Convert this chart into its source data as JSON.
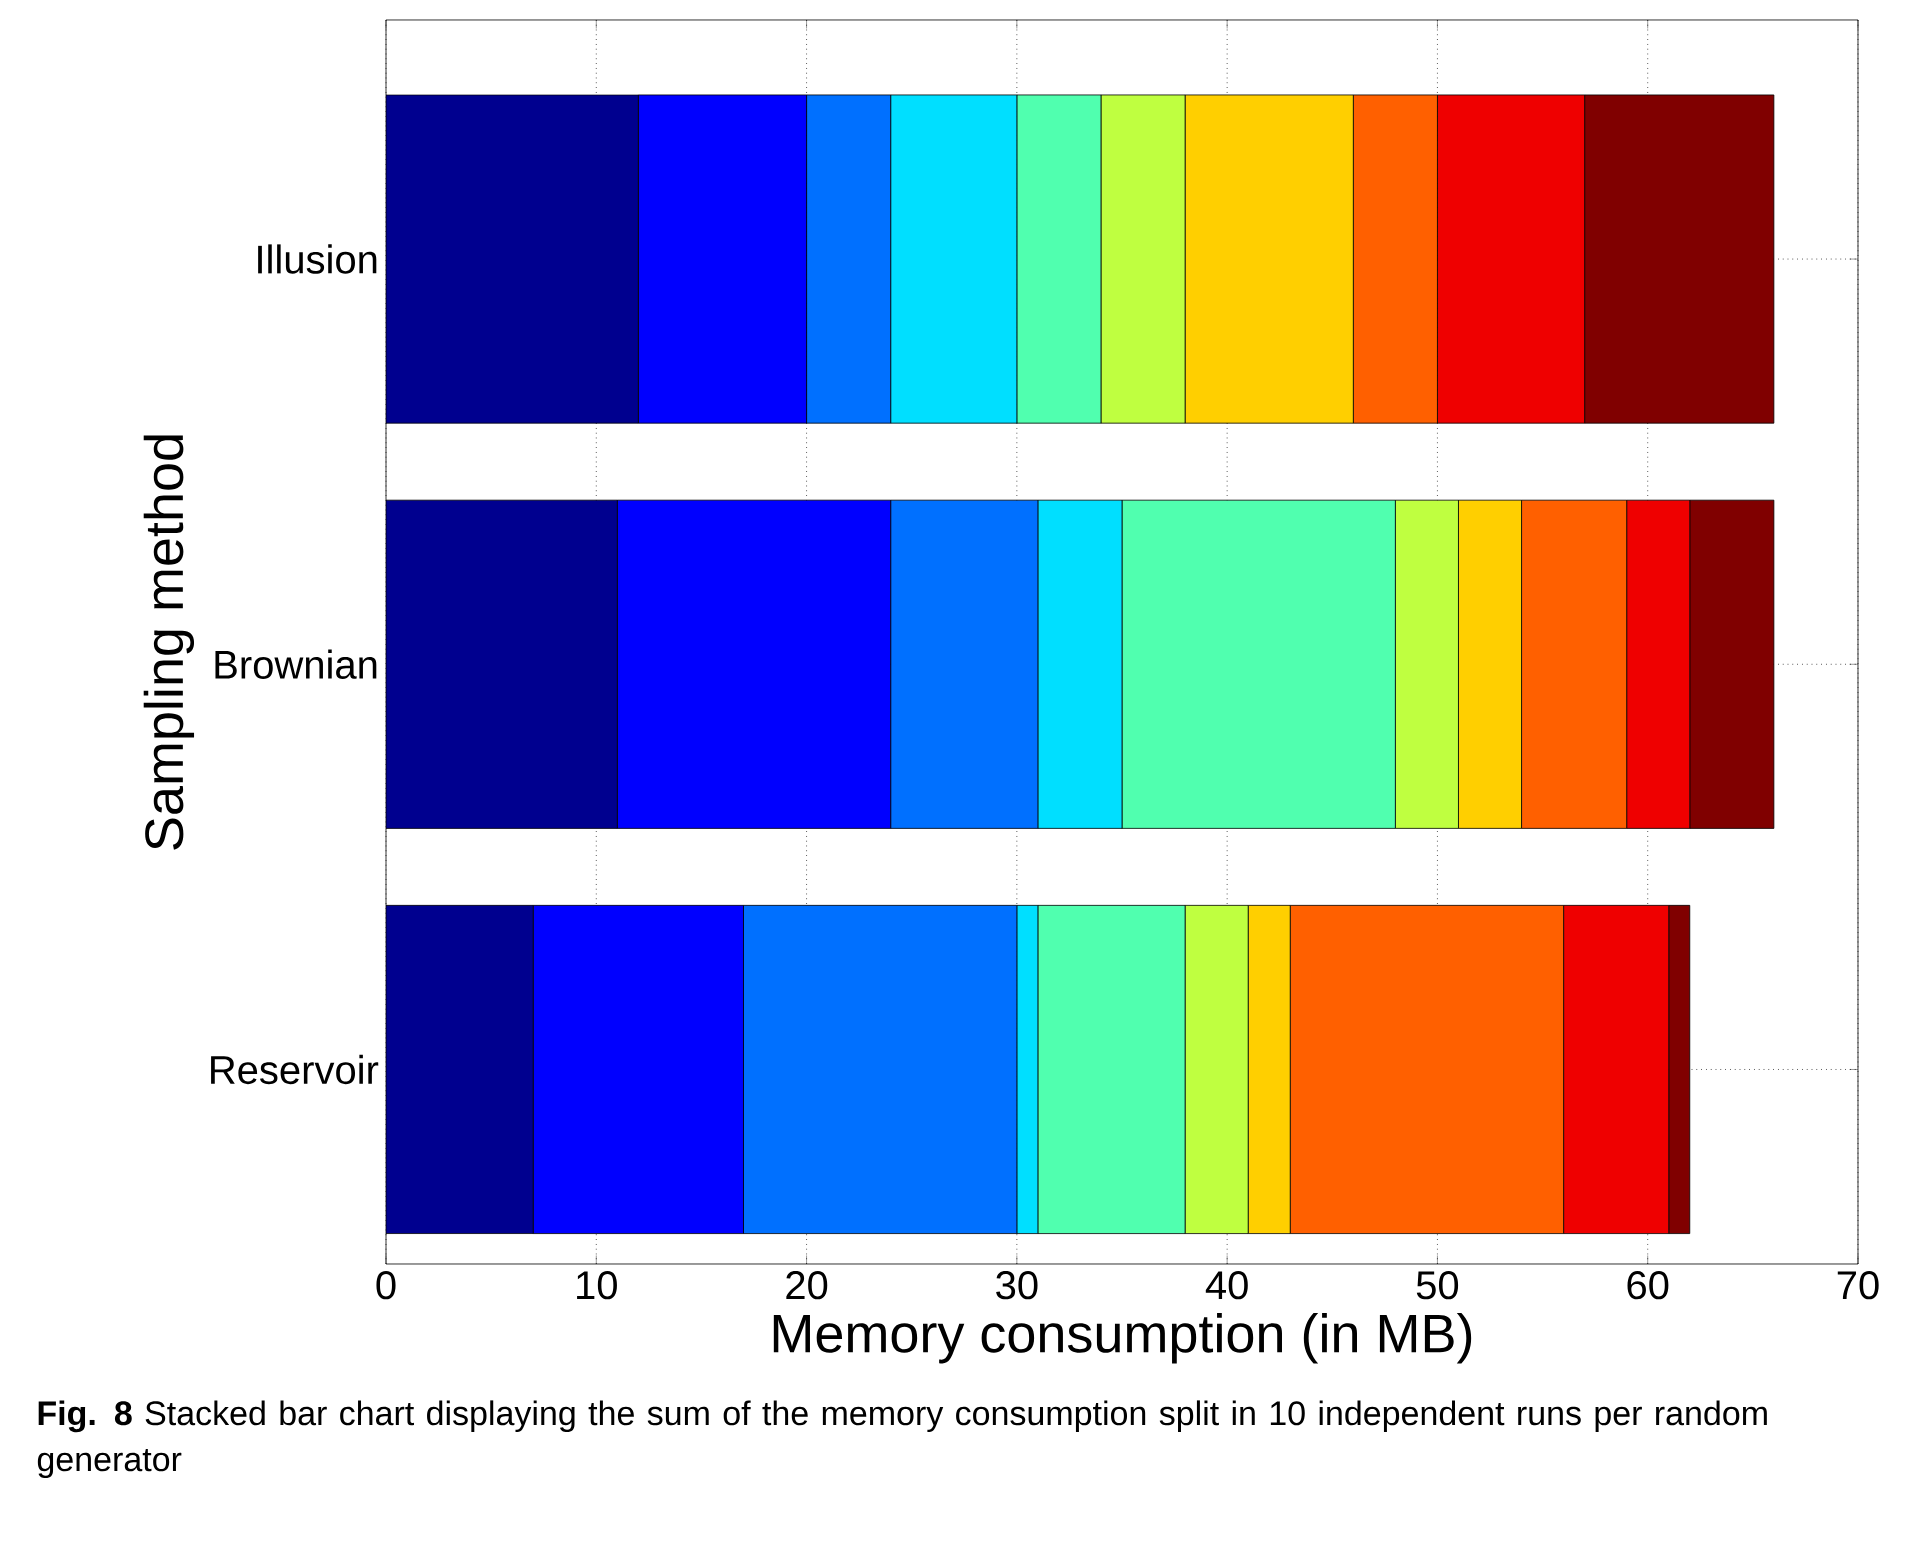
{
  "chart_data": {
    "type": "bar",
    "orientation": "horizontal",
    "stacked": true,
    "xlabel": "Memory consumption (in MB)",
    "ylabel": "Sampling method",
    "categories": [
      "Illusion",
      "Brownian",
      "Reservoir"
    ],
    "series": [
      {
        "color": "#00008f",
        "values": [
          12,
          11,
          7
        ]
      },
      {
        "color": "#0000ff",
        "values": [
          8,
          13,
          10
        ]
      },
      {
        "color": "#0070ff",
        "values": [
          4,
          7,
          13
        ]
      },
      {
        "color": "#00dfff",
        "values": [
          6,
          4,
          1
        ]
      },
      {
        "color": "#50ffaf",
        "values": [
          4,
          13,
          7
        ]
      },
      {
        "color": "#bfff40",
        "values": [
          4,
          3,
          3
        ]
      },
      {
        "color": "#ffcf00",
        "values": [
          8,
          3,
          2
        ]
      },
      {
        "color": "#ff6000",
        "values": [
          4,
          5,
          13
        ]
      },
      {
        "color": "#ef0000",
        "values": [
          7,
          3,
          5
        ]
      },
      {
        "color": "#800000",
        "values": [
          9,
          4,
          1
        ]
      }
    ],
    "xlim": [
      0,
      70
    ],
    "xticks": [
      0,
      10,
      20,
      30,
      40,
      50,
      60,
      70
    ],
    "grid": true,
    "annotations": [
      "**Fig. 8** Stacked bar chart displaying the sum of the memory consumption split in 10 independent runs per random generator"
    ]
  }
}
